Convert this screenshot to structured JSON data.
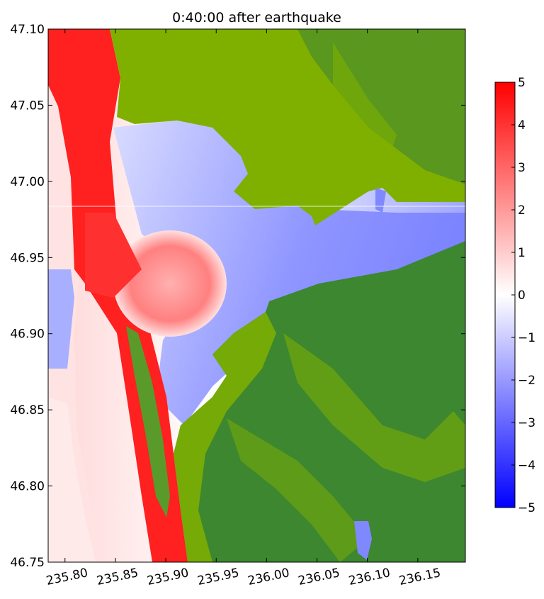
{
  "chart_data": {
    "type": "heatmap",
    "title": "0:40:00 after earthquake",
    "xlabel": "",
    "ylabel": "",
    "xlim": [
      235.7833,
      236.1972
    ],
    "ylim": [
      46.75,
      47.1
    ],
    "x_ticks": [
      {
        "value": 235.8,
        "label": "235.80"
      },
      {
        "value": 235.85,
        "label": "235.85"
      },
      {
        "value": 235.9,
        "label": "235.90"
      },
      {
        "value": 235.95,
        "label": "235.95"
      },
      {
        "value": 236.0,
        "label": "236.00"
      },
      {
        "value": 236.05,
        "label": "236.05"
      },
      {
        "value": 236.1,
        "label": "236.10"
      },
      {
        "value": 236.15,
        "label": "236.15"
      }
    ],
    "y_ticks": [
      {
        "value": 46.75,
        "label": "46.75"
      },
      {
        "value": 46.8,
        "label": "46.80"
      },
      {
        "value": 46.85,
        "label": "46.85"
      },
      {
        "value": 46.9,
        "label": "46.90"
      },
      {
        "value": 46.95,
        "label": "46.95"
      },
      {
        "value": 47.0,
        "label": "47.00"
      },
      {
        "value": 47.05,
        "label": "47.05"
      },
      {
        "value": 47.1,
        "label": "47.10"
      }
    ],
    "colorbar": {
      "range": [
        -5,
        5
      ],
      "colormap": [
        "#0000ff",
        "#ffffff",
        "#ff0000"
      ],
      "ticks": [
        {
          "value": 5,
          "label": "5"
        },
        {
          "value": 4,
          "label": "4"
        },
        {
          "value": 3,
          "label": "3"
        },
        {
          "value": 2,
          "label": "2"
        },
        {
          "value": 1,
          "label": "1"
        },
        {
          "value": 0,
          "label": "0"
        },
        {
          "value": -1,
          "label": "−1"
        },
        {
          "value": -2,
          "label": "−2"
        },
        {
          "value": -3,
          "label": "−3"
        },
        {
          "value": -4,
          "label": "−4"
        },
        {
          "value": -5,
          "label": "−5"
        }
      ]
    },
    "land_colors": {
      "low": "#7fb000",
      "high": "#3a8530"
    },
    "grid": false,
    "legend": "colorbar-right"
  }
}
